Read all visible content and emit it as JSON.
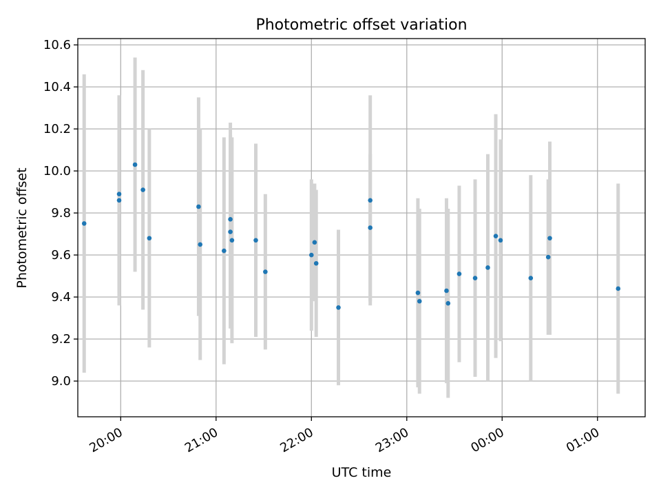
{
  "chart_data": {
    "type": "scatter",
    "title": "Photometric offset variation",
    "xlabel": "UTC time",
    "ylabel": "Photometric offset",
    "xlim": [
      "19:33",
      "01:30"
    ],
    "ylim": [
      8.83,
      10.63
    ],
    "grid": true,
    "x_ticks": [
      {
        "time": "20:00",
        "label": "20:00"
      },
      {
        "time": "21:00",
        "label": "21:00"
      },
      {
        "time": "22:00",
        "label": "22:00"
      },
      {
        "time": "23:00",
        "label": "23:00"
      },
      {
        "time": "00:00",
        "label": "00:00"
      },
      {
        "time": "01:00",
        "label": "01:00"
      }
    ],
    "y_ticks": [
      9.0,
      9.2,
      9.4,
      9.6,
      9.8,
      10.0,
      10.2,
      10.4,
      10.6
    ],
    "colors": {
      "point": "#1f77b4",
      "errorbar": "#d3d3d3",
      "grid": "#b0b0b0"
    },
    "series": [
      {
        "points": [
          {
            "x": "19:37",
            "y": 9.75,
            "err": 0.71
          },
          {
            "x": "19:59",
            "y": 9.89,
            "err": 0.47
          },
          {
            "x": "19:59",
            "y": 9.86,
            "err": 0.5
          },
          {
            "x": "20:09",
            "y": 10.03,
            "err": 0.51
          },
          {
            "x": "20:14",
            "y": 9.91,
            "err": 0.57
          },
          {
            "x": "20:18",
            "y": 9.68,
            "err": 0.52
          },
          {
            "x": "20:49",
            "y": 9.83,
            "err": 0.52
          },
          {
            "x": "20:50",
            "y": 9.65,
            "err": 0.55
          },
          {
            "x": "21:05",
            "y": 9.62,
            "err": 0.54
          },
          {
            "x": "21:09",
            "y": 9.77,
            "err": 0.46
          },
          {
            "x": "21:09",
            "y": 9.71,
            "err": 0.46
          },
          {
            "x": "21:10",
            "y": 9.67,
            "err": 0.49
          },
          {
            "x": "21:25",
            "y": 9.67,
            "err": 0.46
          },
          {
            "x": "21:31",
            "y": 9.52,
            "err": 0.37
          },
          {
            "x": "22:00",
            "y": 9.6,
            "err": 0.36
          },
          {
            "x": "22:02",
            "y": 9.66,
            "err": 0.28
          },
          {
            "x": "22:03",
            "y": 9.56,
            "err": 0.35
          },
          {
            "x": "22:17",
            "y": 9.35,
            "err": 0.37
          },
          {
            "x": "22:37",
            "y": 9.86,
            "err": 0.5
          },
          {
            "x": "22:37",
            "y": 9.73,
            "err": 0.35
          },
          {
            "x": "23:07",
            "y": 9.42,
            "err": 0.45
          },
          {
            "x": "23:08",
            "y": 9.38,
            "err": 0.44
          },
          {
            "x": "23:25",
            "y": 9.43,
            "err": 0.44
          },
          {
            "x": "23:26",
            "y": 9.37,
            "err": 0.45
          },
          {
            "x": "23:33",
            "y": 9.51,
            "err": 0.42
          },
          {
            "x": "23:43",
            "y": 9.49,
            "err": 0.47
          },
          {
            "x": "23:51",
            "y": 9.54,
            "err": 0.54
          },
          {
            "x": "23:56",
            "y": 9.69,
            "err": 0.58
          },
          {
            "x": "23:59",
            "y": 9.67,
            "err": 0.48
          },
          {
            "x": "00:18",
            "y": 9.49,
            "err": 0.49
          },
          {
            "x": "00:29",
            "y": 9.59,
            "err": 0.37
          },
          {
            "x": "00:30",
            "y": 9.68,
            "err": 0.46
          },
          {
            "x": "01:13",
            "y": 9.44,
            "err": 0.5
          }
        ]
      }
    ]
  }
}
